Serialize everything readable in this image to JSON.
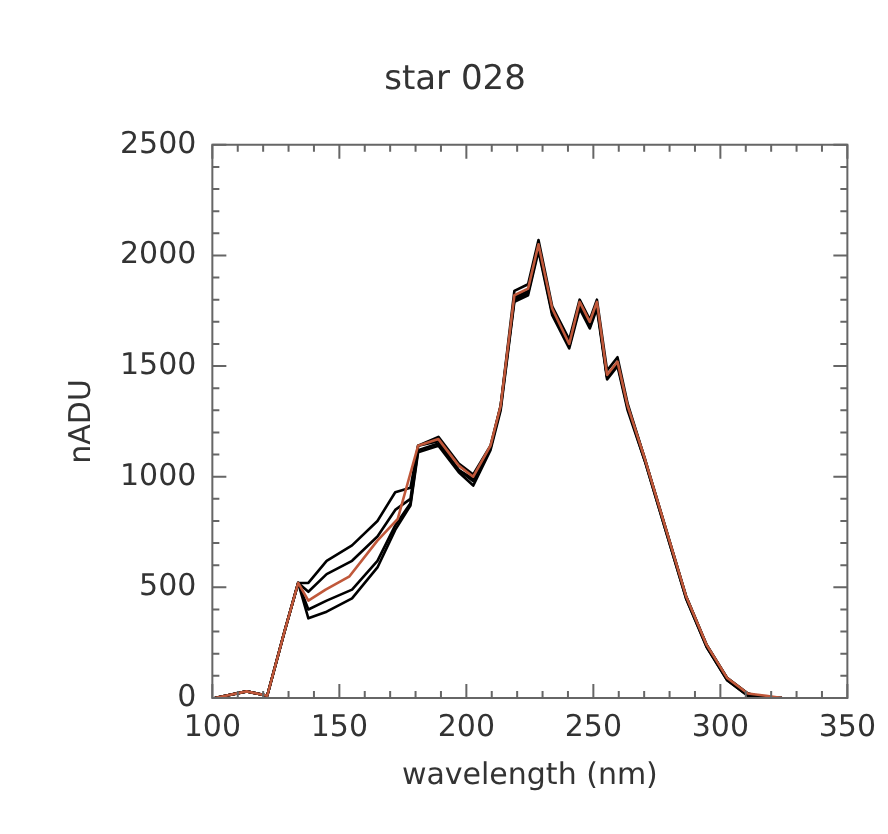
{
  "chart_data": {
    "type": "line",
    "title": "star 028",
    "xlabel": "wavelength (nm)",
    "ylabel": "nADU",
    "xlim": [
      100,
      350
    ],
    "xticks": [
      100,
      150,
      200,
      250,
      300,
      350
    ],
    "ylim": [
      0,
      2500
    ],
    "yticks": [
      0,
      500,
      1000,
      1500,
      2000,
      2500
    ],
    "grid": false,
    "legend": false,
    "marker": "none",
    "line_style": "solid",
    "series": [
      {
        "color": "#000000",
        "x": [
          101,
          113.5,
          121.6,
          128.4,
          133.8,
          137.8,
          145,
          155,
          165,
          172,
          178,
          181,
          189,
          197,
          202.7,
          209.5,
          213.5,
          218.9,
          224.3,
          228.4,
          233.8,
          240.5,
          244.6,
          248.6,
          251.4,
          255.4,
          259.5,
          263.5,
          270.3,
          278.4,
          286.5,
          294.6,
          302.7,
          310.8,
          318,
          324.3
        ],
        "values": [
          0,
          30,
          10,
          300,
          520,
          520,
          620,
          690,
          800,
          930,
          950,
          1140,
          1180,
          1060,
          1010,
          1140,
          1320,
          1840,
          1870,
          2070,
          1770,
          1620,
          1800,
          1710,
          1800,
          1480,
          1540,
          1330,
          1080,
          770,
          460,
          240,
          90,
          20,
          0,
          0
        ]
      },
      {
        "color": "#000000",
        "x": [
          101,
          113.5,
          121.6,
          128.4,
          133.8,
          137.8,
          145,
          155,
          165,
          172,
          178,
          181,
          189,
          197,
          202.7,
          209.5,
          213.5,
          218.9,
          224.3,
          228.4,
          233.8,
          240.5,
          244.6,
          248.6,
          251.4,
          255.4,
          259.5,
          263.5,
          270.3,
          278.4,
          286.5,
          294.6,
          302.7,
          310.8,
          318,
          324.3
        ],
        "values": [
          0,
          30,
          10,
          300,
          520,
          480,
          560,
          620,
          730,
          850,
          900,
          1140,
          1160,
          1030,
          990,
          1130,
          1320,
          1810,
          1840,
          2040,
          1740,
          1590,
          1780,
          1680,
          1780,
          1450,
          1510,
          1320,
          1080,
          770,
          460,
          240,
          90,
          20,
          0,
          0
        ]
      },
      {
        "color": "#000000",
        "x": [
          101,
          113.5,
          121.6,
          128.4,
          133.8,
          137.8,
          145,
          155,
          165,
          172,
          178,
          181,
          189,
          197,
          202.7,
          209.5,
          213.5,
          218.9,
          224.3,
          228.4,
          233.8,
          240.5,
          244.6,
          248.6,
          251.4,
          255.4,
          259.5,
          263.5,
          270.3,
          278.4,
          286.5,
          294.6,
          302.7,
          310.8,
          318,
          324.3
        ],
        "values": [
          0,
          30,
          10,
          300,
          520,
          400,
          440,
          490,
          620,
          780,
          880,
          1120,
          1150,
          1030,
          980,
          1130,
          1310,
          1800,
          1830,
          2030,
          1740,
          1590,
          1770,
          1680,
          1770,
          1450,
          1510,
          1310,
          1070,
          760,
          450,
          230,
          80,
          10,
          0,
          0
        ]
      },
      {
        "color": "#000000",
        "x": [
          101,
          113.5,
          121.6,
          128.4,
          133.8,
          137.8,
          145,
          155,
          165,
          172,
          178,
          181,
          189,
          197,
          202.7,
          209.5,
          213.5,
          218.9,
          224.3,
          228.4,
          233.8,
          240.5,
          244.6,
          248.6,
          251.4,
          255.4,
          259.5,
          263.5,
          270.3,
          278.4,
          286.5,
          294.6,
          302.7,
          310.8,
          318,
          324.3
        ],
        "values": [
          0,
          30,
          10,
          300,
          520,
          360,
          390,
          450,
          590,
          760,
          870,
          1110,
          1140,
          1020,
          960,
          1120,
          1300,
          1790,
          1820,
          2020,
          1730,
          1580,
          1760,
          1670,
          1760,
          1440,
          1500,
          1300,
          1070,
          760,
          450,
          230,
          80,
          10,
          0,
          0
        ]
      },
      {
        "color": "#c0583a",
        "x": [
          101,
          113.5,
          121.6,
          128.4,
          133.8,
          137.8,
          144.6,
          154,
          164.9,
          173,
          181,
          189,
          197,
          202.7,
          209.5,
          213.5,
          218.9,
          224.3,
          228.4,
          233.8,
          240.5,
          244.6,
          248.6,
          251.4,
          255.4,
          259.5,
          263.5,
          270.3,
          278.4,
          286.5,
          294.6,
          302.7,
          310.8,
          318,
          324.3
        ],
        "values": [
          0,
          30,
          10,
          300,
          520,
          440,
          490,
          550,
          710,
          810,
          1140,
          1170,
          1050,
          1000,
          1140,
          1320,
          1820,
          1850,
          2050,
          1760,
          1600,
          1790,
          1700,
          1790,
          1460,
          1520,
          1320,
          1080,
          770,
          460,
          240,
          90,
          20,
          10,
          0
        ]
      }
    ]
  }
}
